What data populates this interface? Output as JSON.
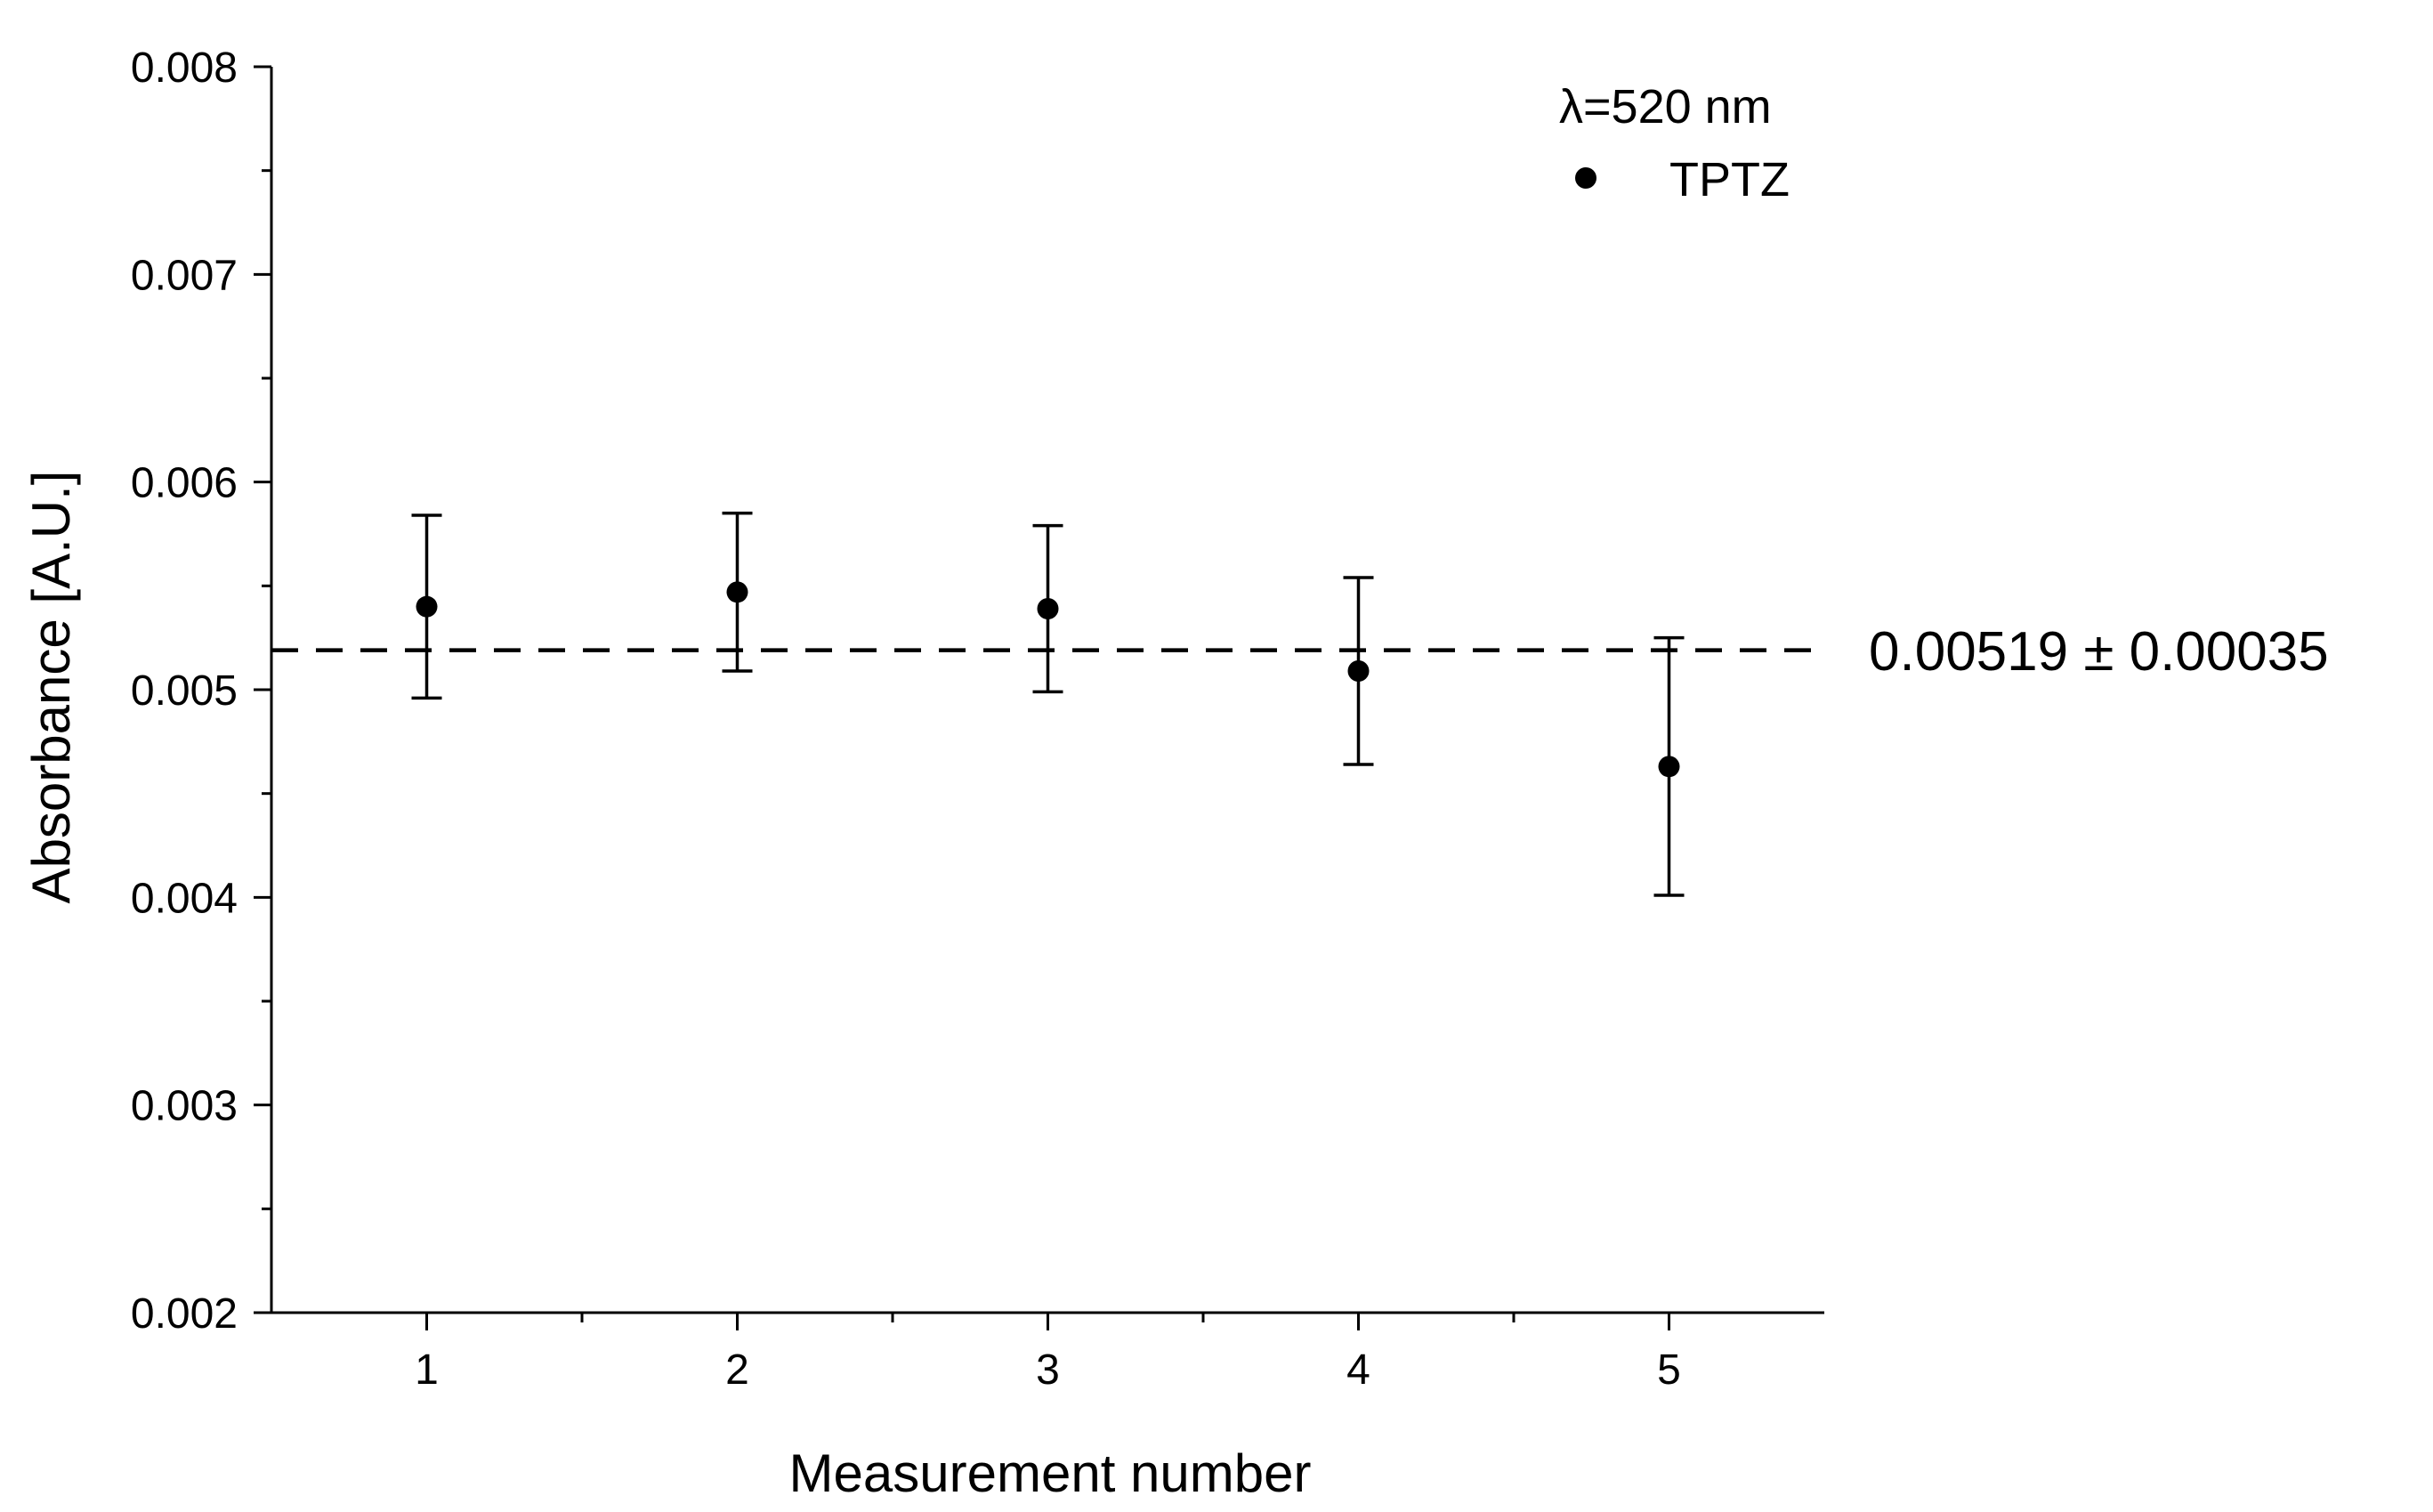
{
  "chart_data": {
    "type": "scatter",
    "title": "",
    "xlabel": "Measurement number",
    "ylabel": "Absorbance [A.U.]",
    "xlim": [
      0.5,
      5.5
    ],
    "ylim": [
      0.002,
      0.008
    ],
    "x_ticks": [
      1,
      2,
      3,
      4,
      5
    ],
    "x_tick_labels": [
      "1",
      "2",
      "3",
      "4",
      "5"
    ],
    "y_ticks": [
      0.002,
      0.003,
      0.004,
      0.005,
      0.006,
      0.007,
      0.008
    ],
    "y_tick_labels": [
      "0.002",
      "0.003",
      "0.004",
      "0.005",
      "0.006",
      "0.007",
      "0.008"
    ],
    "grid": false,
    "legend": {
      "placement": "top-right",
      "heading": "λ=520 nm",
      "entries": [
        {
          "label": "TPTZ",
          "marker": "circle",
          "color": "#000000"
        }
      ]
    },
    "series": [
      {
        "name": "TPTZ",
        "x": [
          1,
          2,
          3,
          4,
          5
        ],
        "y": [
          0.0054,
          0.00547,
          0.00539,
          0.00509,
          0.00463
        ],
        "yerr": [
          0.00044,
          0.00038,
          0.0004,
          0.00045,
          0.00062
        ]
      }
    ],
    "reference_line": {
      "y": 0.00519,
      "style": "dashed",
      "label": "0.00519 ± 0.00035"
    }
  }
}
